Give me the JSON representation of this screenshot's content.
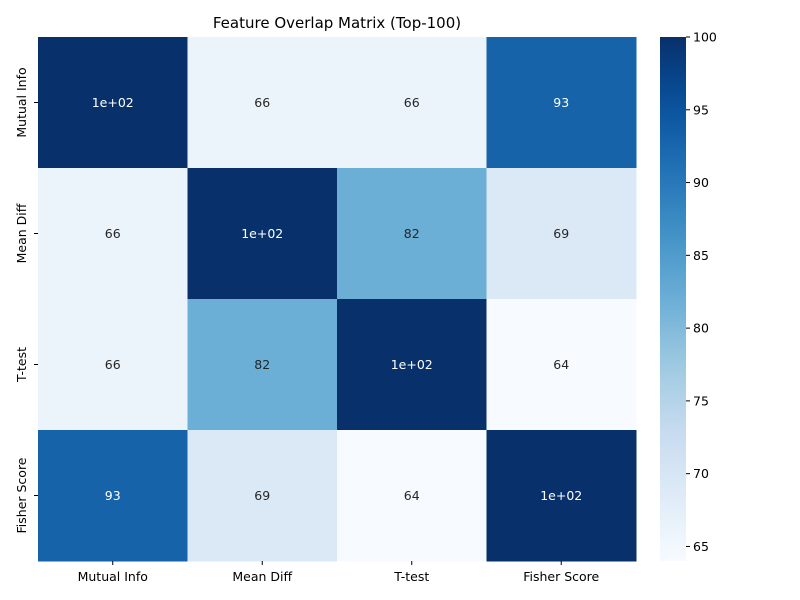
{
  "chart_data": {
    "type": "heatmap",
    "title": "Feature Overlap Matrix (Top-100)",
    "xlabel": "",
    "ylabel": "",
    "x_categories": [
      "Mutual Info",
      "Mean Diff",
      "T-test",
      "Fisher Score"
    ],
    "y_categories": [
      "Mutual Info",
      "Mean Diff",
      "T-test",
      "Fisher Score"
    ],
    "values": [
      [
        100,
        66,
        66,
        93
      ],
      [
        66,
        100,
        82,
        69
      ],
      [
        66,
        82,
        100,
        64
      ],
      [
        93,
        69,
        64,
        100
      ]
    ],
    "cell_labels": [
      [
        "1e+02",
        "66",
        "66",
        "93"
      ],
      [
        "66",
        "1e+02",
        "82",
        "69"
      ],
      [
        "66",
        "82",
        "1e+02",
        "64"
      ],
      [
        "93",
        "69",
        "64",
        "1e+02"
      ]
    ],
    "colormap": "Blues",
    "color_range": [
      64,
      100
    ],
    "colorbar_ticks": [
      "65",
      "70",
      "75",
      "80",
      "85",
      "90",
      "95",
      "100"
    ],
    "colorbar_tick_values": [
      65,
      70,
      75,
      80,
      85,
      90,
      95,
      100
    ],
    "grid": false
  }
}
